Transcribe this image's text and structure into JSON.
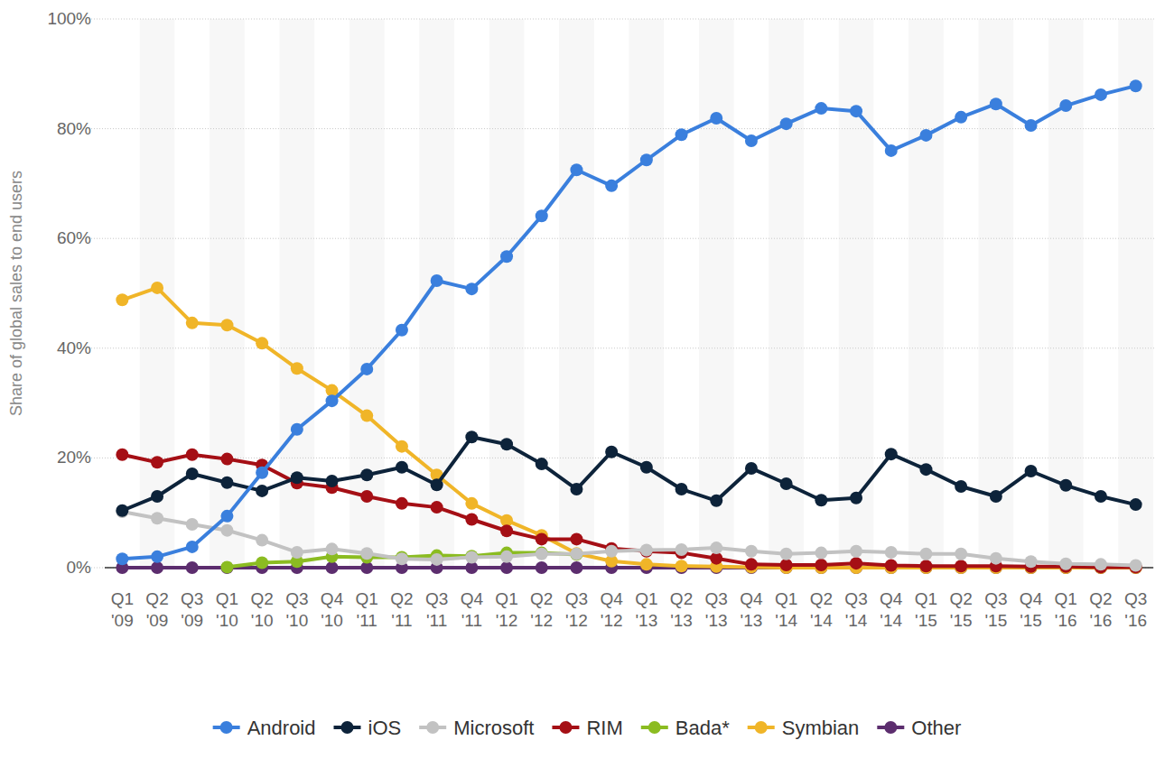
{
  "chart_data": {
    "type": "line",
    "y_label": "Share of global sales to end users",
    "categories": [
      "Q1 '09",
      "Q2 '09",
      "Q3 '09",
      "Q1 '10",
      "Q2 '10",
      "Q3 '10",
      "Q4 '10",
      "Q1 '11",
      "Q2 '11",
      "Q3 '11",
      "Q4 '11",
      "Q1 '12",
      "Q2 '12",
      "Q3 '12",
      "Q4 '12",
      "Q1 '13",
      "Q2 '13",
      "Q3 '13",
      "Q4 '13",
      "Q1 '14",
      "Q2 '14",
      "Q3 '14",
      "Q4 '14",
      "Q1 '15",
      "Q2 '15",
      "Q3 '15",
      "Q4 '15",
      "Q1 '16",
      "Q2 '16",
      "Q3 '16"
    ],
    "ylim": [
      0,
      100
    ],
    "yticks": [
      {
        "value": 0,
        "label": "0%"
      },
      {
        "value": 20,
        "label": "20%"
      },
      {
        "value": 40,
        "label": "40%"
      },
      {
        "value": 60,
        "label": "60%"
      },
      {
        "value": 80,
        "label": "80%"
      },
      {
        "value": 100,
        "label": "100%"
      }
    ],
    "grid": true,
    "legend": "bottom",
    "marker": "circle",
    "series": [
      {
        "name": "Android",
        "color": "#3a7fdd",
        "values": [
          1.6,
          2.0,
          3.8,
          9.4,
          17.3,
          25.2,
          30.4,
          36.2,
          43.3,
          52.3,
          50.8,
          56.7,
          64.1,
          72.5,
          69.6,
          74.3,
          78.9,
          81.9,
          77.8,
          80.9,
          83.7,
          83.2,
          76.0,
          78.8,
          82.1,
          84.5,
          80.6,
          84.2,
          86.2,
          87.8
        ]
      },
      {
        "name": "iOS",
        "color": "#0d233a",
        "values": [
          10.4,
          13.0,
          17.1,
          15.5,
          14.0,
          16.4,
          15.8,
          16.9,
          18.3,
          15.1,
          23.8,
          22.5,
          18.9,
          14.3,
          21.1,
          18.3,
          14.3,
          12.2,
          18.1,
          15.3,
          12.3,
          12.7,
          20.7,
          17.9,
          14.8,
          13.0,
          17.6,
          15.0,
          13.0,
          11.5
        ]
      },
      {
        "name": "Microsoft",
        "color": "#c2c2c2",
        "values": [
          10.2,
          9.0,
          7.9,
          6.8,
          5.0,
          2.8,
          3.4,
          2.6,
          1.6,
          1.5,
          1.9,
          2.0,
          2.5,
          2.5,
          3.0,
          3.2,
          3.3,
          3.6,
          3.0,
          2.5,
          2.7,
          3.0,
          2.8,
          2.5,
          2.5,
          1.7,
          1.1,
          0.7,
          0.6,
          0.4
        ]
      },
      {
        "name": "RIM",
        "color": "#a50f15",
        "values": [
          20.6,
          19.2,
          20.6,
          19.8,
          18.7,
          15.4,
          14.6,
          13.0,
          11.7,
          11.0,
          8.8,
          6.7,
          5.2,
          5.2,
          3.5,
          3.0,
          2.7,
          1.7,
          0.6,
          0.5,
          0.5,
          0.8,
          0.4,
          0.3,
          0.3,
          0.3,
          0.2,
          0.2,
          0.1,
          0.1
        ]
      },
      {
        "name": "Bada*",
        "color": "#8bbc21",
        "values": [
          null,
          null,
          null,
          0.1,
          0.9,
          1.1,
          2.0,
          1.9,
          1.9,
          2.2,
          2.1,
          2.7,
          2.7,
          2.4,
          null,
          null,
          null,
          null,
          null,
          null,
          null,
          null,
          null,
          null,
          null,
          null,
          null,
          null,
          null,
          null
        ]
      },
      {
        "name": "Symbian",
        "color": "#f0b528",
        "values": [
          48.8,
          51.0,
          44.6,
          44.2,
          40.9,
          36.3,
          32.3,
          27.7,
          22.1,
          16.9,
          11.7,
          8.6,
          5.9,
          2.6,
          1.2,
          0.6,
          0.3,
          0.2,
          0.1,
          0,
          0,
          0,
          0,
          0,
          0,
          0,
          0,
          0,
          0,
          0
        ]
      },
      {
        "name": "Other",
        "color": "#5c2d6e",
        "values": [
          0,
          0,
          0,
          0,
          0,
          0,
          0,
          0,
          0,
          0,
          0,
          0,
          0,
          0,
          0,
          0,
          0,
          0,
          0,
          0,
          0,
          0,
          0,
          0,
          0,
          0,
          0,
          0,
          0,
          0
        ]
      }
    ]
  }
}
